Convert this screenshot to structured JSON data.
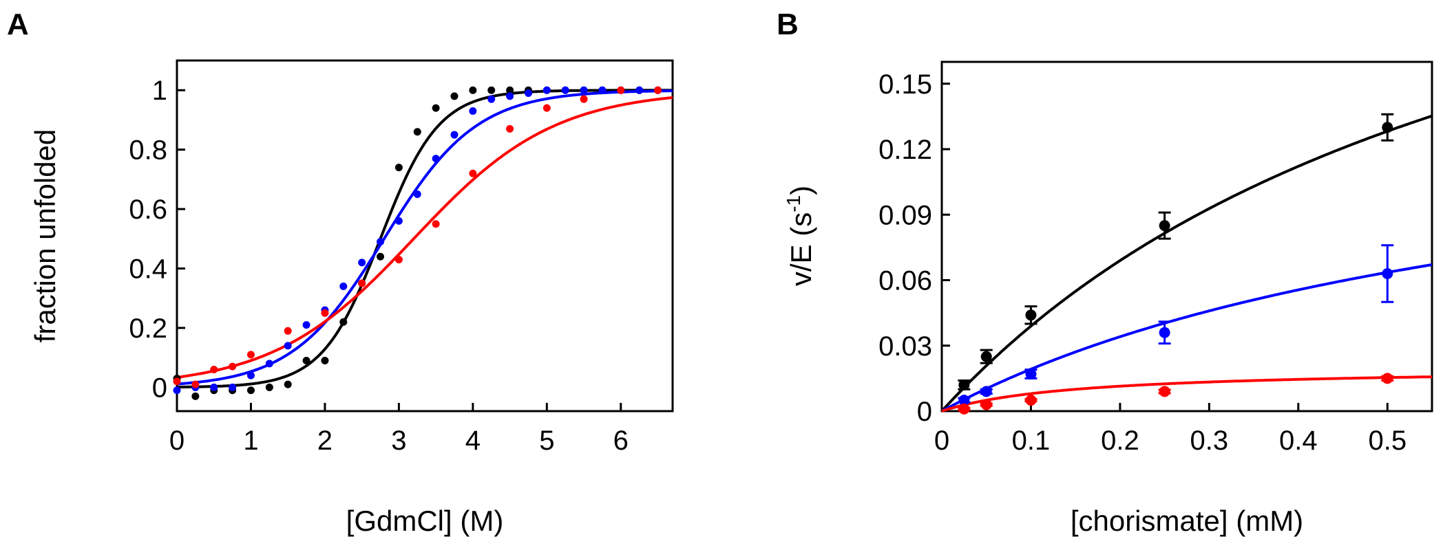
{
  "chart_data": [
    {
      "panel": "A",
      "type": "scatter",
      "title": "",
      "xlabel": "[GdmCl] (M)",
      "ylabel": "fraction unfolded",
      "xlim": [
        0,
        6.7
      ],
      "ylim": [
        -0.08,
        1.1
      ],
      "xticks": [
        "0",
        "1",
        "2",
        "3",
        "4",
        "5",
        "6"
      ],
      "yticks": [
        "0",
        "0.2",
        "0.4",
        "0.6",
        "0.8",
        "1"
      ],
      "grid": false,
      "legend": "none",
      "series": [
        {
          "color": "#000000",
          "fit": {
            "model": "two-state",
            "midpoint": 2.75,
            "m": 2.55
          },
          "points": [
            [
              0,
              0.03
            ],
            [
              0.25,
              -0.03
            ],
            [
              0.5,
              -0.01
            ],
            [
              0.75,
              -0.01
            ],
            [
              1.0,
              -0.01
            ],
            [
              1.25,
              0.0
            ],
            [
              1.5,
              0.01
            ],
            [
              1.75,
              0.09
            ],
            [
              2.0,
              0.09
            ],
            [
              2.25,
              0.22
            ],
            [
              2.5,
              0.35
            ],
            [
              2.75,
              0.44
            ],
            [
              3.0,
              0.74
            ],
            [
              3.25,
              0.86
            ],
            [
              3.5,
              0.94
            ],
            [
              3.75,
              0.98
            ],
            [
              4.0,
              1.0
            ],
            [
              4.25,
              1.0
            ],
            [
              4.5,
              1.0
            ],
            [
              4.75,
              1.0
            ],
            [
              5.0,
              1.0
            ],
            [
              5.25,
              1.0
            ],
            [
              5.5,
              1.0
            ],
            [
              5.75,
              1.0
            ],
            [
              6.0,
              1.0
            ],
            [
              6.25,
              1.0
            ],
            [
              6.5,
              1.0
            ]
          ]
        },
        {
          "color": "#0000ff",
          "fit": {
            "model": "two-state",
            "midpoint": 2.8,
            "m": 1.6
          },
          "points": [
            [
              0,
              -0.01
            ],
            [
              0.25,
              0.0
            ],
            [
              0.5,
              0.0
            ],
            [
              0.75,
              0.0
            ],
            [
              1.0,
              0.04
            ],
            [
              1.25,
              0.08
            ],
            [
              1.5,
              0.14
            ],
            [
              1.75,
              0.21
            ],
            [
              2.0,
              0.26
            ],
            [
              2.25,
              0.34
            ],
            [
              2.5,
              0.42
            ],
            [
              2.75,
              0.49
            ],
            [
              3.0,
              0.56
            ],
            [
              3.25,
              0.65
            ],
            [
              3.5,
              0.77
            ],
            [
              3.75,
              0.85
            ],
            [
              4.0,
              0.93
            ],
            [
              4.25,
              0.97
            ],
            [
              4.5,
              0.98
            ],
            [
              4.75,
              0.99
            ],
            [
              5.0,
              1.0
            ],
            [
              5.25,
              1.0
            ],
            [
              5.5,
              1.0
            ],
            [
              5.75,
              1.0
            ],
            [
              6.0,
              1.0
            ],
            [
              6.25,
              1.0
            ],
            [
              6.5,
              1.0
            ]
          ]
        },
        {
          "color": "#ff0000",
          "fit": {
            "model": "two-state",
            "midpoint": 3.2,
            "m": 1.05
          },
          "points": [
            [
              0,
              0.02
            ],
            [
              0.25,
              0.01
            ],
            [
              0.5,
              0.06
            ],
            [
              0.75,
              0.07
            ],
            [
              1.0,
              0.11
            ],
            [
              1.5,
              0.19
            ],
            [
              2.0,
              0.25
            ],
            [
              2.5,
              0.35
            ],
            [
              3.0,
              0.43
            ],
            [
              3.5,
              0.55
            ],
            [
              4.0,
              0.72
            ],
            [
              4.5,
              0.87
            ],
            [
              5.0,
              0.94
            ],
            [
              5.5,
              0.97
            ],
            [
              6.0,
              1.0
            ],
            [
              6.5,
              1.0
            ]
          ]
        }
      ]
    },
    {
      "panel": "B",
      "type": "scatter",
      "title": "",
      "xlabel": "[chorismate] (mM)",
      "ylabel_main": "v/E (s",
      "ylabel_sup": "-1",
      "ylabel_close": ")",
      "xlim": [
        0,
        0.55
      ],
      "ylim": [
        0,
        0.16
      ],
      "xticks": [
        "0",
        "0.1",
        "0.2",
        "0.3",
        "0.4",
        "0.5"
      ],
      "yticks": [
        "0",
        "0.03",
        "0.06",
        "0.09",
        "0.12",
        "0.15"
      ],
      "grid": false,
      "legend": "none",
      "series": [
        {
          "color": "#000000",
          "fit": {
            "model": "michaelis-menten",
            "Vmax": 0.3,
            "Km": 0.67
          },
          "points": [
            [
              0.025,
              0.012,
              0.002
            ],
            [
              0.05,
              0.025,
              0.003
            ],
            [
              0.1,
              0.044,
              0.004
            ],
            [
              0.25,
              0.085,
              0.006
            ],
            [
              0.5,
              0.13,
              0.006
            ]
          ]
        },
        {
          "color": "#0000ff",
          "fit": {
            "model": "michaelis-menten",
            "Vmax": 0.15,
            "Km": 0.68
          },
          "points": [
            [
              0.025,
              0.005,
              0.001
            ],
            [
              0.05,
              0.009,
              0.001
            ],
            [
              0.1,
              0.017,
              0.002
            ],
            [
              0.25,
              0.036,
              0.005
            ],
            [
              0.5,
              0.063,
              0.013
            ]
          ]
        },
        {
          "color": "#ff0000",
          "fit": {
            "model": "michaelis-menten",
            "Vmax": 0.02,
            "Km": 0.15
          },
          "points": [
            [
              0.025,
              0.001,
              0.0005
            ],
            [
              0.05,
              0.003,
              0.0005
            ],
            [
              0.1,
              0.005,
              0.0005
            ],
            [
              0.25,
              0.009,
              0.0008
            ],
            [
              0.5,
              0.015,
              0.001
            ]
          ]
        }
      ]
    }
  ]
}
